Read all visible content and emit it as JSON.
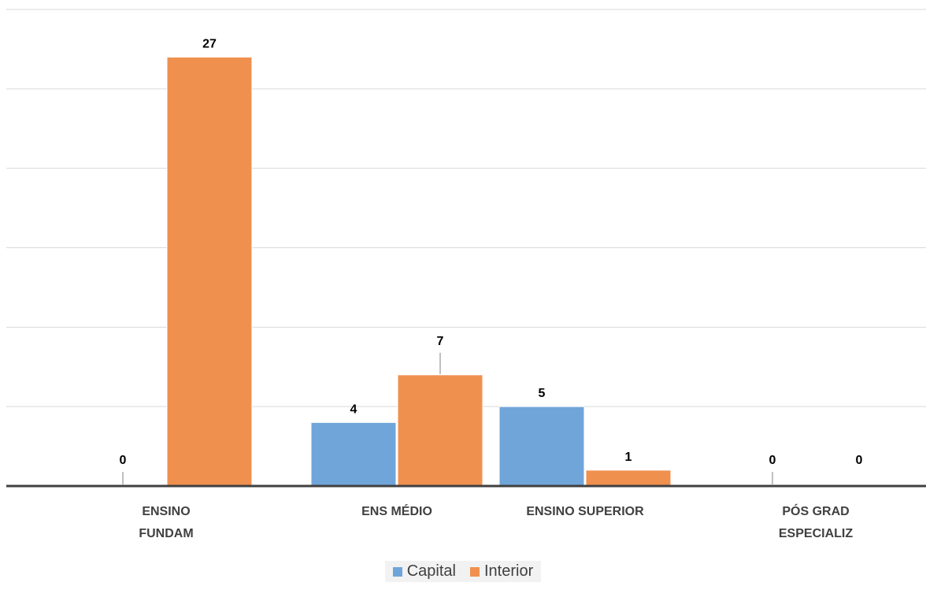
{
  "chart_data": {
    "type": "bar",
    "title": "",
    "xlabel": "",
    "ylabel": "",
    "categories": [
      [
        "ENSINO",
        "FUNDAM"
      ],
      [
        "ENS MÉDIO"
      ],
      [
        "ENSINO SUPERIOR"
      ],
      [
        "PÓS GRAD",
        "ESPECIALIZ"
      ]
    ],
    "series": [
      {
        "name": "Capital",
        "color": "#70a5da",
        "values": [
          0,
          4,
          5,
          0
        ]
      },
      {
        "name": "Interior",
        "color": "#f0904f",
        "values": [
          27,
          7,
          1,
          0
        ]
      }
    ],
    "ylim": [
      0,
      30
    ],
    "grid": true,
    "legend": "bottom-center",
    "data_labels": true
  }
}
